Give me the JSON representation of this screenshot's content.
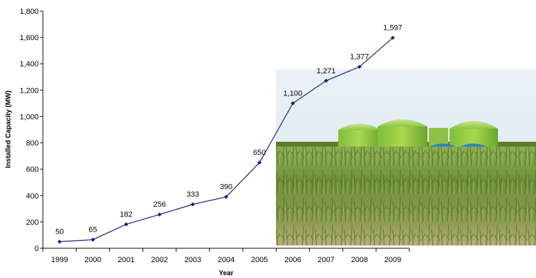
{
  "chart_data": {
    "type": "line",
    "title": "",
    "xlabel": "Year",
    "ylabel": "Installed Capacity (MW)",
    "categories": [
      "1999",
      "2000",
      "2001",
      "2002",
      "2003",
      "2004",
      "2005",
      "2006",
      "2007",
      "2008",
      "2009"
    ],
    "values": [
      50,
      65,
      182,
      256,
      333,
      390,
      650,
      1100,
      1271,
      1377,
      1597
    ],
    "data_labels": [
      "50",
      "65",
      "182",
      "256",
      "333",
      "390",
      "650",
      "1,100",
      "1,271",
      "1,377",
      "1,597"
    ],
    "ylim": [
      0,
      1800
    ],
    "yticks": [
      0,
      200,
      400,
      600,
      800,
      1000,
      1200,
      1400,
      1600,
      1800
    ],
    "ytick_labels": [
      "0",
      "200",
      "400",
      "600",
      "800",
      "1,000",
      "1,200",
      "1,400",
      "1,600",
      "1,800"
    ],
    "grid": false,
    "legend": "none",
    "line_color": "#1f1f7a",
    "background_photo": "corn field with green biogas digester tanks"
  }
}
